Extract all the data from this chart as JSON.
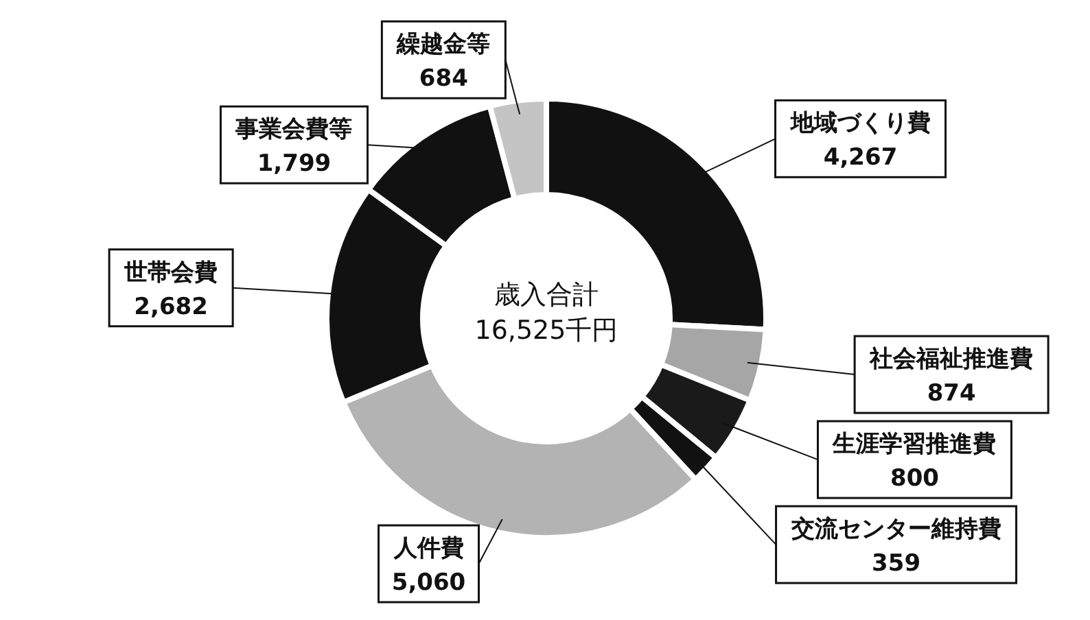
{
  "chart_data": {
    "type": "donut",
    "categories": [
      "地域づくり費",
      "社会福祉推進費",
      "生涯学習推進費",
      "交流センター維持費",
      "人件費",
      "世帯会費",
      "事業会費等",
      "繰越金等"
    ],
    "values": [
      4267,
      874,
      800,
      359,
      5060,
      2682,
      1799,
      684
    ],
    "colors": [
      "#111111",
      "#a6a6a6",
      "#1a1a1a",
      "#111111",
      "#b3b3b3",
      "#111111",
      "#111111",
      "#c4c4c4"
    ],
    "value_labels": [
      "4,267",
      "874",
      "800",
      "359",
      "5,060",
      "2,682",
      "1,799",
      "684"
    ],
    "annotations": [
      "歳入合計",
      "16,525千円"
    ]
  }
}
